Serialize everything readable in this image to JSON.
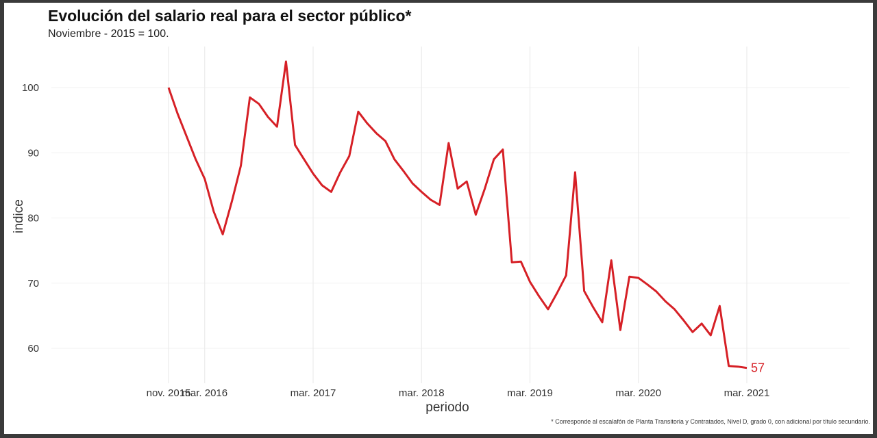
{
  "chart_data": {
    "type": "line",
    "title": "Evolución del salario real para el sector público*",
    "subtitle": "Noviembre - 2015 = 100.",
    "xlabel": "periodo",
    "ylabel": "indice",
    "footnote": "* Corresponde al escalafón de Planta Transitoria y Contratados, Nivel D, grado 0, con adicional por título secundario.",
    "end_label": "57",
    "line_color": "#d62026",
    "grid": true,
    "ylim": [
      55,
      105
    ],
    "y_ticks": [
      60,
      70,
      80,
      90,
      100
    ],
    "x_ticks": [
      {
        "label": "nov. 2015",
        "date": "2015-11"
      },
      {
        "label": "mar. 2016",
        "date": "2016-03"
      },
      {
        "label": "mar. 2017",
        "date": "2017-03"
      },
      {
        "label": "mar. 2018",
        "date": "2018-03"
      },
      {
        "label": "mar. 2019",
        "date": "2019-03"
      },
      {
        "label": "mar. 2020",
        "date": "2020-03"
      },
      {
        "label": "mar. 2021",
        "date": "2021-03"
      }
    ],
    "series": [
      {
        "x": [
          "2015-11",
          "2015-12",
          "2016-01",
          "2016-02",
          "2016-03",
          "2016-04",
          "2016-05",
          "2016-06",
          "2016-07",
          "2016-08",
          "2016-09",
          "2016-10",
          "2016-11",
          "2016-12",
          "2017-01",
          "2017-02",
          "2017-03",
          "2017-04",
          "2017-05",
          "2017-06",
          "2017-07",
          "2017-08",
          "2017-09",
          "2017-10",
          "2017-11",
          "2017-12",
          "2018-01",
          "2018-02",
          "2018-03",
          "2018-04",
          "2018-05",
          "2018-06",
          "2018-07",
          "2018-08",
          "2018-09",
          "2018-10",
          "2018-11",
          "2018-12",
          "2019-01",
          "2019-02",
          "2019-03",
          "2019-04",
          "2019-05",
          "2019-06",
          "2019-07",
          "2019-08",
          "2019-09",
          "2019-10",
          "2019-11",
          "2019-12",
          "2020-01",
          "2020-02",
          "2020-03",
          "2020-04",
          "2020-05",
          "2020-06",
          "2020-07",
          "2020-08",
          "2020-09",
          "2020-10",
          "2020-11",
          "2020-12",
          "2021-01",
          "2021-02",
          "2021-03"
        ],
        "values": [
          100.0,
          96.0,
          92.5,
          89.0,
          86.0,
          81.0,
          77.5,
          82.5,
          88.0,
          98.5,
          97.5,
          95.5,
          94.0,
          104.0,
          91.2,
          89.0,
          86.8,
          85.0,
          84.0,
          87.0,
          89.5,
          96.3,
          94.5,
          93.0,
          91.8,
          89.0,
          87.2,
          85.3,
          84.0,
          82.8,
          82.0,
          91.5,
          84.5,
          85.6,
          80.5,
          84.5,
          89.0,
          90.5,
          73.2,
          73.3,
          70.2,
          68.0,
          66.0,
          68.5,
          71.2,
          87.0,
          68.8,
          66.3,
          64.0,
          73.5,
          62.8,
          71.0,
          70.8,
          69.8,
          68.7,
          67.2,
          66.0,
          64.3,
          62.5,
          63.8,
          62.0,
          66.5,
          57.3,
          57.2,
          57.0
        ]
      }
    ]
  }
}
